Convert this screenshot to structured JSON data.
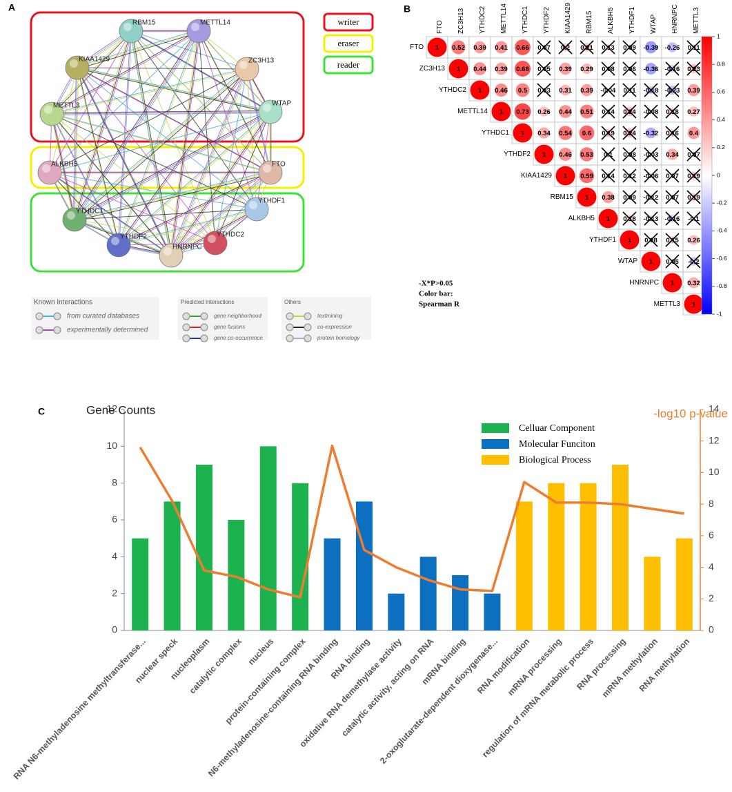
{
  "panels": {
    "a": "A",
    "b": "B",
    "c": "C"
  },
  "network": {
    "nodes": [
      "RBM15",
      "METTL14",
      "KIAA1429",
      "ZC3H13",
      "METTL3",
      "WTAP",
      "ALKBH5",
      "FTO",
      "YTHDC1",
      "YTHDF1",
      "YTHDF2",
      "HNRNPC",
      "YTHDC2"
    ],
    "groups": [
      {
        "label": "writer",
        "color": "#e8141c"
      },
      {
        "label": "eraser",
        "color": "#f5f000"
      },
      {
        "label": "reader",
        "color": "#3fe03a"
      }
    ],
    "legend": [
      {
        "title": "Known Interactions",
        "items": [
          "from curated databases",
          "experimentally determined"
        ]
      },
      {
        "title": "Predicted Interactions",
        "items": [
          "gene neighborhood",
          "gene fusions",
          "gene co-occurrence"
        ]
      },
      {
        "title": "Others",
        "items": [
          "textmining",
          "co-expression",
          "protein homology"
        ]
      }
    ]
  },
  "chart_data": [
    {
      "type": "corrplot",
      "variables": [
        "FTO",
        "ZC3H13",
        "YTHDC2",
        "METTL14",
        "YTHDC1",
        "YTHDF2",
        "KIAA1429",
        "RBM15",
        "ALKBH5",
        "YTHDF1",
        "WTAP",
        "HNRNPC",
        "METTL3"
      ],
      "rows": [
        {
          "values": [
            1,
            0.52,
            0.39,
            0.41,
            0.66,
            0.07,
            0.2,
            0.21,
            0.13,
            0.09,
            -0.39,
            -0.26,
            0.11
          ],
          "crossed": [
            false,
            false,
            false,
            false,
            false,
            true,
            true,
            true,
            true,
            true,
            false,
            false,
            true
          ]
        },
        {
          "values": [
            1,
            0.44,
            0.39,
            0.68,
            0.05,
            0.39,
            0.29,
            0.08,
            0.06,
            -0.36,
            -0.16,
            0.23
          ],
          "crossed": [
            false,
            false,
            false,
            false,
            true,
            false,
            false,
            true,
            true,
            false,
            true,
            true
          ]
        },
        {
          "values": [
            1,
            0.46,
            0.5,
            0.03,
            0.31,
            0.39,
            -0.04,
            0.11,
            -0.18,
            -0.23,
            0.39
          ],
          "crossed": [
            false,
            false,
            false,
            true,
            false,
            false,
            true,
            true,
            true,
            true,
            false
          ]
        },
        {
          "values": [
            1,
            0.73,
            0.26,
            0.44,
            0.51,
            0.14,
            0.24,
            -0.08,
            0.18,
            0.27
          ],
          "crossed": [
            false,
            false,
            false,
            false,
            false,
            true,
            true,
            true,
            true,
            false
          ]
        },
        {
          "values": [
            1,
            0.34,
            0.54,
            0.6,
            0.19,
            0.24,
            -0.32,
            0.16,
            0.4
          ],
          "crossed": [
            false,
            false,
            false,
            false,
            true,
            true,
            false,
            true,
            false
          ]
        },
        {
          "values": [
            1,
            0.46,
            0.53,
            0.1,
            0.08,
            -0.03,
            0.34,
            0.07
          ],
          "crossed": [
            false,
            false,
            false,
            true,
            true,
            true,
            false,
            true
          ]
        },
        {
          "values": [
            1,
            0.59,
            0.14,
            0.12,
            -0.06,
            0.07,
            0.19
          ],
          "crossed": [
            false,
            false,
            true,
            true,
            true,
            true,
            true
          ]
        },
        {
          "values": [
            1,
            0.38,
            0.09,
            -0.12,
            0.07,
            0.19
          ],
          "crossed": [
            false,
            false,
            true,
            true,
            true,
            true
          ]
        },
        {
          "values": [
            1,
            0.18,
            -0.13,
            -0.16,
            -0.1
          ],
          "crossed": [
            false,
            true,
            true,
            true,
            true
          ]
        },
        {
          "values": [
            1,
            0.08,
            0.15,
            0.26
          ],
          "crossed": [
            false,
            true,
            true,
            false
          ]
        },
        {
          "values": [
            1,
            0.05,
            -0.2
          ],
          "crossed": [
            false,
            true,
            true
          ]
        },
        {
          "values": [
            1,
            0.32
          ],
          "crossed": [
            false,
            false
          ]
        },
        {
          "values": [
            1
          ],
          "crossed": [
            false
          ]
        }
      ],
      "colorbar": {
        "lim": [
          -1,
          1
        ],
        "ticks": [
          1,
          0.8,
          0.6,
          0.4,
          0.2,
          0,
          -0.2,
          -0.4,
          -0.6,
          -0.8,
          -1
        ],
        "colors": [
          "#0000ff",
          "#ffffff",
          "#ff0000"
        ]
      },
      "notes": [
        "-X*P>0.05",
        "Color bar:",
        "Spearman R"
      ]
    },
    {
      "type": "bar",
      "ylabel": "Gene Counts",
      "categories": [
        "RNA N6-methyladenosine methyltransferase...",
        "nuclear speck",
        "nucleoplasm",
        "catalytic complex",
        "nucleus",
        "protein-containing complex",
        "N6-methyladenosine-containing RNA binding",
        "RNA binding",
        "oxidative RNA demethylase activity",
        "catalytic activity, acting on RNA",
        "mRNA binding",
        "2-oxoglutarate-dependent dioxygenase...",
        "RNA modification",
        "mRNA processing",
        "regulation of mRNA metabolic process",
        "RNA processing",
        "mRNA methylation",
        "RNA methylation"
      ],
      "series": [
        {
          "name": "Celluar Component",
          "color": "#1db250",
          "values": [
            5,
            7,
            9,
            6,
            10,
            8,
            null,
            null,
            null,
            null,
            null,
            null,
            null,
            null,
            null,
            null,
            null,
            null
          ]
        },
        {
          "name": "Molecular Funciton",
          "color": "#0c6fc0",
          "values": [
            null,
            null,
            null,
            null,
            null,
            null,
            5,
            7,
            2,
            4,
            3,
            2,
            null,
            null,
            null,
            null,
            null,
            null
          ]
        },
        {
          "name": "Biological Process",
          "color": "#ffbf00",
          "values": [
            null,
            null,
            null,
            null,
            null,
            null,
            null,
            null,
            null,
            null,
            null,
            null,
            7,
            8,
            8,
            9,
            4,
            5
          ]
        },
        {
          "name": "-log10 p-value",
          "color": "#ed7d31",
          "axis": "y2",
          "values": [
            11.6,
            8.2,
            3.8,
            3.4,
            2.6,
            2.1,
            11.7,
            5.1,
            4.0,
            3.2,
            2.6,
            2.5,
            9.4,
            8.1,
            8.1,
            8.0,
            7.7,
            7.4
          ]
        }
      ],
      "ylim": [
        0,
        12
      ],
      "yticks": [
        0,
        2,
        4,
        6,
        8,
        10,
        12
      ],
      "y2lim": [
        0,
        14
      ],
      "y2ticks": [
        0,
        2,
        4,
        6,
        8,
        10,
        12,
        14
      ]
    }
  ]
}
